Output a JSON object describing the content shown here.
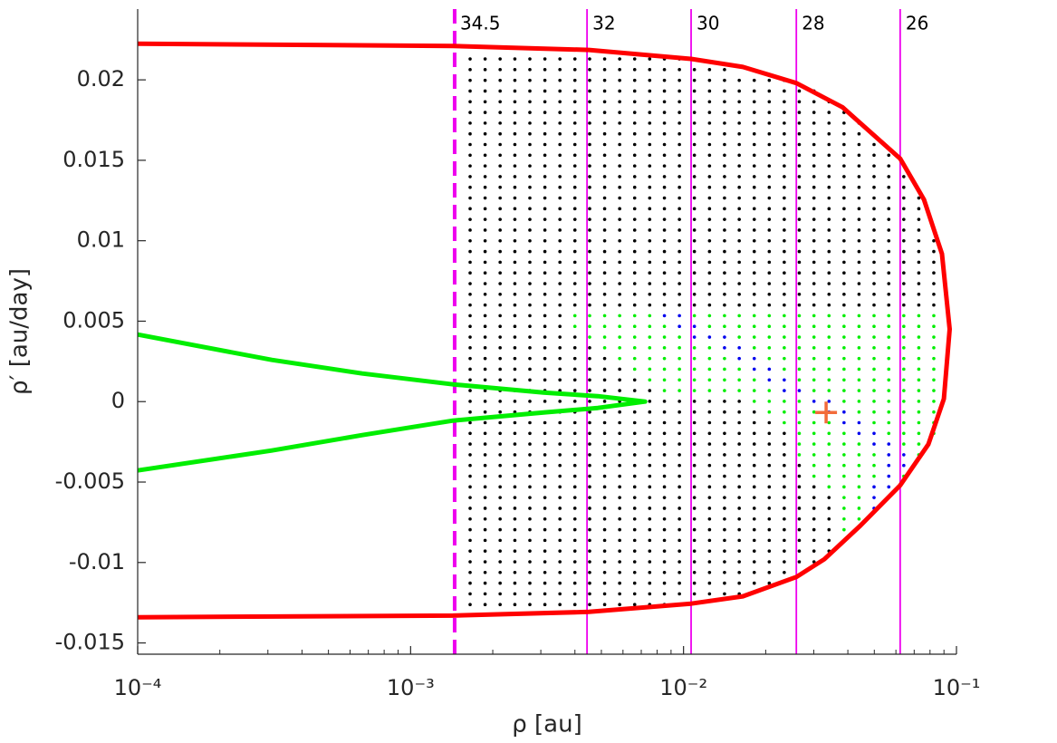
{
  "chart_data": {
    "type": "line",
    "xlabel": "ρ [au]",
    "ylabel": "ρ′ [au/day]",
    "xlog": true,
    "xlim": [
      0.0001,
      0.1
    ],
    "ylim": [
      -0.0157,
      0.0244
    ],
    "xticks": [
      {
        "value": 0.0001,
        "label": "10⁻⁴"
      },
      {
        "value": 0.001,
        "label": "10⁻³"
      },
      {
        "value": 0.01,
        "label": "10⁻²"
      },
      {
        "value": 0.1,
        "label": "10⁻¹"
      }
    ],
    "xminorticks": [
      0.0002,
      0.0003,
      0.0004,
      0.0005,
      0.0006,
      0.0007,
      0.0008,
      0.0009,
      0.002,
      0.003,
      0.004,
      0.005,
      0.006,
      0.007,
      0.008,
      0.009,
      0.02,
      0.03,
      0.04,
      0.05,
      0.06,
      0.07,
      0.08,
      0.09
    ],
    "yticks": [
      -0.015,
      -0.01,
      -0.005,
      0,
      0.005,
      0.01,
      0.015,
      0.02
    ],
    "grid": false,
    "curves": [
      {
        "color": "#ff0000",
        "x": [
          0.0001,
          0.00143,
          0.0045,
          0.01066,
          0.0165,
          0.0259,
          0.0382,
          0.0622,
          0.076,
          0.0885,
          0.0944,
          0.0899,
          0.0789,
          0.0622,
          0.0445,
          0.0328,
          0.0259,
          0.0165,
          0.01066,
          0.0045,
          0.00143,
          0.0001
        ],
        "y": [
          0.02225,
          0.0221,
          0.02186,
          0.0213,
          0.0208,
          0.0198,
          0.0183,
          0.0151,
          0.01256,
          0.00918,
          0.0045,
          0.00017,
          -0.00265,
          -0.0052,
          -0.0077,
          -0.0098,
          -0.0109,
          -0.0121,
          -0.01256,
          -0.01307,
          -0.0133,
          -0.0134
        ]
      },
      {
        "color": "#00ee00",
        "x": [
          0.0001,
          0.00031,
          0.000665,
          0.00143,
          0.00307,
          0.00485,
          0.00723,
          0.00485,
          0.00307,
          0.00143,
          0.000665,
          0.00031,
          0.0001
        ],
        "y": [
          0.00417,
          0.00259,
          0.00175,
          0.00107,
          0.00056,
          0.00034,
          0,
          -0.00039,
          -0.00068,
          -0.00118,
          -0.00208,
          -0.00304,
          -0.00428
        ]
      }
    ],
    "vlines": [
      {
        "x": 0.00145,
        "label": "34.5",
        "dashed": true,
        "color": "#ee00ee"
      },
      {
        "x": 0.00443,
        "label": "32",
        "dashed": false,
        "color": "#ee00ee"
      },
      {
        "x": 0.01066,
        "label": "30",
        "dashed": false,
        "color": "#ee00ee"
      },
      {
        "x": 0.0259,
        "label": "28",
        "dashed": false,
        "color": "#ee00ee"
      },
      {
        "x": 0.0622,
        "label": "26",
        "dashed": false,
        "color": "#ee00ee"
      }
    ],
    "marker": {
      "x": 0.0333,
      "y": -0.00068,
      "color": "#f26b3a"
    },
    "grid_colors_key": {
      "k": "#000000",
      "g": "#00ee00",
      "b": "#0000ee"
    },
    "grid_x": [
      0.001652,
      0.001875,
      0.002128,
      0.00241,
      0.002735,
      0.003105,
      0.003524,
      0.003999,
      0.004529,
      0.00514,
      0.005834,
      0.006622,
      0.007516,
      0.008511,
      0.00966,
      0.01096,
      0.01245,
      0.01413,
      0.016,
      0.01816,
      0.02061,
      0.02339,
      0.02655,
      0.03006,
      0.03412,
      0.03873,
      0.04395,
      0.04989,
      0.05649,
      0.06412,
      0.07278,
      0.0826
    ],
    "grid_y": [
      0.0213,
      0.020635,
      0.01997,
      0.019305,
      0.01864,
      0.017975,
      0.01731,
      0.016645,
      0.01598,
      0.015315,
      0.01465,
      0.013985,
      0.01332,
      0.012655,
      0.01199,
      0.011325,
      0.01066,
      0.009995,
      0.00933,
      0.008665,
      0.008,
      0.007335,
      0.00667,
      0.006005,
      0.00534,
      0.004675,
      0.00401,
      0.003345,
      0.00268,
      0.002015,
      0.00135,
      0.000685,
      2e-05,
      -0.000645,
      -0.00131,
      -0.001975,
      -0.00264,
      -0.003305,
      -0.00397,
      -0.004635,
      -0.0053,
      -0.005965,
      -0.00663,
      -0.007295,
      -0.00796,
      -0.008625,
      -0.00929,
      -0.009955,
      -0.01062,
      -0.011285,
      -0.01195,
      -0.012615
    ],
    "grid_colors": [
      "kkkkkkkkkkkkkkk",
      "kkkkkkkkkkkkkkkkkk",
      "kkkkkkkkkkkkkkkkkkkkkk",
      "kkkkkkkkkkkkkkkkkkkkkkkk",
      "kkkkkkkkkkkkkkkkkkkkkkkkk",
      "kkkkkkkkkkkkkkkkkkkkkkkkkk",
      "kkkkkkkkkkkkkkkkkkkkkkkkkkk",
      "kkkkkkkkkkkkkkkkkkkkkkkkkkk",
      "kkkkkkkkkkkkkkkkkkkkkkkkkkkk",
      "kkkkkkkkkkkkkkkkkkkkkkkkkkkkk",
      "kkkkkkkkkkkkkkkkkkkkkkkkkkkkk",
      "kkkkkkkkkkkkkkkkkkkkkkkkkkkkkk",
      "kkkkkkkkkkkkkkkkkkkkkkkkkkkkkk",
      "kkkkkkkkkkkkkkkkkkkkkkkkkkkkkkk",
      "kkkkkkkkkkkkkkkkkkkkkkkkkkkkkkk",
      "kkkkkkkkkkkkkkkkkkkkkkkkkkkkkkk",
      "kkkkkkkkkkkkkkkkkkkkkkkkkkkkkkkk",
      "kkkkkkkkkkkkkkkkkkkkkkkkkkkkkkkk",
      "kkkkkkkkkkkkkkkkkkkkkkkkkkkkkkkk",
      "kkkkkkkkkkkkkkkkkkkkkkkkkkkkkkkk",
      "kkkkkkkkkkkkkkkkkkkkkkkkkkkkkkkk",
      "kkkkkkkkkkkkkkkkkkkkkkkkkkkkkkkk",
      "kkkkkkkkkkkkkkkkkkkkkkkkkkkkkkkk",
      "kkkkkkkkkkkkkkkkkkkkkkkkkkkkkkkk",
      "kkkkkkkggggggbbggggggggggggggggg",
      "kkkkkkkgggggggbbgggggggggggggggg",
      "kkkkkkkkgggggggbbbgggggggggggggg",
      "kkkkkkkkkggggggggbbggggggggggggg",
      "kkkkkkkkkkggggggggbbgggggggggggg",
      "kkkkkkkkkkkggggggggbbggggggggggg",
      "kkkkkkkkkkkkggggggggbbgggggggggg",
      "kkkkkkkkkkkkkggggggggbbggggggggg",
      "kkkkkkkkkkkkkkkkkkkggggbbggggggg",
      "kkkkkkkkkkkkkkkkkkkkggggbbgggggg",
      "kkkkkkkkkkkkkkkkkkkkkggggbbggggg",
      "kkkkkkkkkkkkkkkkkkkkkkggggbbgggg",
      "kkkkkkkkkkkkkkkkkkkkkkgggggbbgg",
      "kkkkkkkkkkkkkkkkkkkkkkggggggbbg",
      "kkkkkkkkkkkkkkkkkkkkkkkgggggbb",
      "kkkkkkkkkkkkkkkkkkkkkkkgggggbg",
      "kkkkkkkkkkkkkkkkkkkkkkkkgggbb",
      "kkkkkkkkkkkkkkkkkkkkkkkkkggb",
      "kkkkkkkkkkkkkkkkkkkkkkkkkggb",
      "kkkkkkkkkkkkkkkkkkkkkkkkkgg",
      "kkkkkkkkkkkkkkkkkkkkkkkkkg",
      "kkkkkkkkkkkkkkkkkkkkkkkkk",
      "kkkkkkkkkkkkkkkkkkkkkkkkk",
      "kkkkkkkkkkkkkkkkkkkkkkkk",
      "kkkkkkkkkkkkkkkkkkkkkk",
      "kkkkkkkkkkkkkkkkkkkkk",
      "kkkkkkkkkkkkkkkkkkk",
      "kkkkkkkkkkkkkkk"
    ]
  }
}
